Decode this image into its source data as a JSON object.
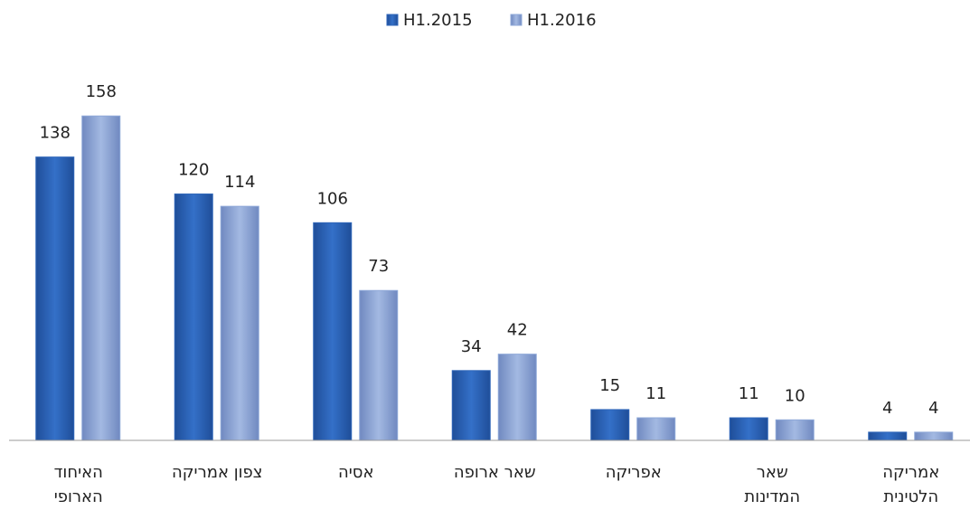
{
  "chart_data": {
    "type": "bar",
    "categories": [
      "האיחוד\nהארופי",
      "צפון אמריקה",
      "אסיה",
      "שאר ארופה",
      "אפריקה",
      "שאר\nהמדינות",
      "אמריקה\nהלטינית"
    ],
    "series": [
      {
        "name": "H1.2015",
        "color": "#2f66b9",
        "values": [
          138,
          120,
          106,
          34,
          15,
          11,
          4
        ]
      },
      {
        "name": "H1.2016",
        "color": "#8ea8d8",
        "values": [
          158,
          114,
          73,
          42,
          11,
          10,
          4
        ]
      }
    ],
    "ylim": [
      0,
      170
    ],
    "legend": "top"
  }
}
